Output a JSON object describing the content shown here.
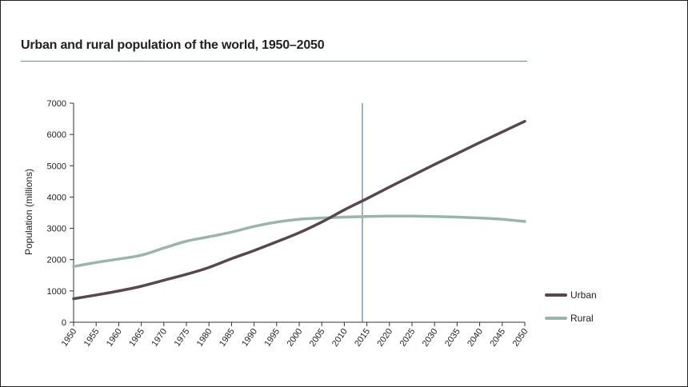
{
  "chart_data": {
    "type": "line",
    "title": "Urban and rural population of the world, 1950–2050",
    "xlabel": "",
    "ylabel": "Population (millions)",
    "xlim": [
      1950,
      2050
    ],
    "ylim": [
      0,
      7000
    ],
    "x": [
      1950,
      1955,
      1960,
      1965,
      1970,
      1975,
      1980,
      1985,
      1990,
      1995,
      2000,
      2005,
      2010,
      2015,
      2020,
      2025,
      2030,
      2035,
      2040,
      2045,
      2050
    ],
    "x_ticks": [
      "1950",
      "1955",
      "1960",
      "1965",
      "1970",
      "1975",
      "1980",
      "1985",
      "1990",
      "1995",
      "2000",
      "2005",
      "2010",
      "2015",
      "2020",
      "2025",
      "2030",
      "2035",
      "2040",
      "2045",
      "2050"
    ],
    "y_ticks": [
      "0",
      "1000",
      "2000",
      "3000",
      "4000",
      "5000",
      "6000",
      "7000"
    ],
    "y_tick_values": [
      0,
      1000,
      2000,
      3000,
      4000,
      5000,
      6000,
      7000
    ],
    "reference_line_x": 2014,
    "grid": false,
    "legend_position": "right",
    "series": [
      {
        "name": "Urban",
        "color": "#58474f",
        "values": [
          750,
          870,
          1000,
          1150,
          1340,
          1530,
          1750,
          2030,
          2290,
          2570,
          2860,
          3200,
          3590,
          3950,
          4320,
          4680,
          5040,
          5390,
          5740,
          6080,
          6420
        ]
      },
      {
        "name": "Rural",
        "color": "#9bb5ab",
        "values": [
          1780,
          1910,
          2020,
          2140,
          2370,
          2590,
          2730,
          2880,
          3060,
          3200,
          3290,
          3330,
          3360,
          3380,
          3390,
          3390,
          3380,
          3360,
          3330,
          3290,
          3220
        ]
      }
    ]
  }
}
